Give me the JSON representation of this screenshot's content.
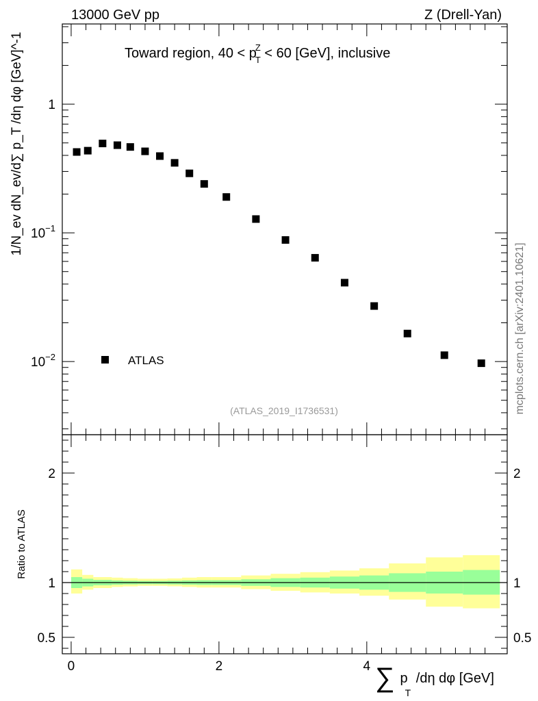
{
  "header": {
    "left": "13000 GeV pp",
    "right": "Z (Drell-Yan)"
  },
  "watermark": "mcplots.cern.ch [arXiv:2401.10621]",
  "analysis_id": "(ATLAS_2019_I1736531)",
  "colors": {
    "data_marker": "#000000",
    "band_inner": "#99ff99",
    "band_outer": "#ffff99",
    "analysis_text": "#999999"
  },
  "chart_data": [
    {
      "type": "scatter",
      "panel": "main",
      "title": "Toward region, 40 < p_T^Z < 60 [GeV], inclusive",
      "title_parts": {
        "pre": "Toward region, 40 < p",
        "sup": "Z",
        "sub": "T",
        "post": " < 60 [GeV], inclusive"
      },
      "ylabel": "1/N_ev dN_ev/d∑ p_T /dη dφ [GeV]^-1",
      "yscale": "log",
      "ylim": [
        0.0027,
        4.2
      ],
      "xlim": [
        -0.12,
        5.9
      ],
      "y_ticks": [
        {
          "value": 1,
          "label": "1"
        },
        {
          "value": 0.1,
          "label": "10",
          "exp": "−1"
        },
        {
          "value": 0.01,
          "label": "10",
          "exp": "−2"
        }
      ],
      "legend": {
        "position": "bottom-left",
        "entries": [
          "ATLAS"
        ]
      },
      "series": [
        {
          "name": "ATLAS",
          "x": [
            0.075,
            0.225,
            0.425,
            0.625,
            0.8,
            1.0,
            1.2,
            1.4,
            1.6,
            1.8,
            2.1,
            2.5,
            2.9,
            3.3,
            3.7,
            4.1,
            4.55,
            5.05,
            5.55
          ],
          "y": [
            0.425,
            0.435,
            0.495,
            0.48,
            0.465,
            0.43,
            0.395,
            0.35,
            0.29,
            0.24,
            0.19,
            0.128,
            0.088,
            0.064,
            0.041,
            0.027,
            0.0165,
            0.0112,
            0.0097
          ]
        }
      ]
    },
    {
      "type": "area",
      "panel": "ratio",
      "ylabel": "Ratio to ATLAS",
      "xlabel": "∑ p_T /dη dφ [GeV]",
      "xlabel_parts": {
        "sum": "∑",
        "p": "p",
        "sub": "T",
        "rest": " /dη dφ [GeV]"
      },
      "xlim": [
        -0.12,
        5.9
      ],
      "ylim": [
        0.35,
        2.35
      ],
      "reference_line": 1,
      "x_ticks": [
        {
          "value": 0,
          "label": "0"
        },
        {
          "value": 2,
          "label": "2"
        },
        {
          "value": 4,
          "label": "4"
        }
      ],
      "y_ticks": [
        {
          "value": 2,
          "label": "2"
        },
        {
          "value": 1,
          "label": "1"
        },
        {
          "value": 0.5,
          "label": "0.5"
        }
      ],
      "bins": [
        0.0,
        0.15,
        0.3,
        0.55,
        0.7,
        0.9,
        1.1,
        1.3,
        1.5,
        1.7,
        1.9,
        2.3,
        2.7,
        3.1,
        3.5,
        3.9,
        4.3,
        4.8,
        5.3,
        5.8
      ],
      "band_inner": {
        "lo": [
          0.95,
          0.965,
          0.975,
          0.98,
          0.983,
          0.985,
          0.985,
          0.983,
          0.98,
          0.978,
          0.978,
          0.97,
          0.96,
          0.955,
          0.945,
          0.935,
          0.915,
          0.9,
          0.89
        ],
        "hi": [
          1.05,
          1.035,
          1.025,
          1.02,
          1.017,
          1.015,
          1.015,
          1.017,
          1.02,
          1.022,
          1.022,
          1.03,
          1.04,
          1.045,
          1.055,
          1.065,
          1.085,
          1.1,
          1.115
        ]
      },
      "band_outer": {
        "lo": [
          0.9,
          0.935,
          0.95,
          0.96,
          0.965,
          0.97,
          0.97,
          0.966,
          0.96,
          0.955,
          0.955,
          0.94,
          0.925,
          0.91,
          0.9,
          0.88,
          0.845,
          0.78,
          0.765
        ],
        "hi": [
          1.12,
          1.07,
          1.05,
          1.045,
          1.04,
          1.035,
          1.035,
          1.038,
          1.045,
          1.05,
          1.05,
          1.065,
          1.08,
          1.095,
          1.11,
          1.13,
          1.175,
          1.23,
          1.25
        ]
      }
    }
  ]
}
